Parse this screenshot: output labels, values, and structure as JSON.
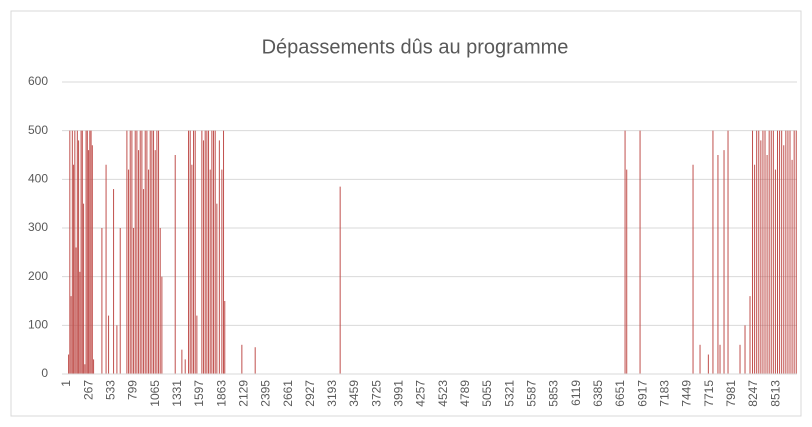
{
  "chart_data": {
    "type": "bar",
    "title": "Dépassements dûs au programme",
    "color": "#c0504d",
    "x": [
      20,
      35,
      50,
      65,
      80,
      95,
      110,
      125,
      140,
      155,
      170,
      185,
      200,
      215,
      230,
      245,
      260,
      275,
      290,
      305,
      320,
      420,
      470,
      500,
      560,
      600,
      640,
      720,
      740,
      760,
      780,
      800,
      820,
      840,
      860,
      880,
      900,
      920,
      940,
      960,
      980,
      1000,
      1020,
      1040,
      1060,
      1080,
      1100,
      1120,
      1140,
      1300,
      1380,
      1420,
      1460,
      1480,
      1500,
      1520,
      1540,
      1560,
      1620,
      1640,
      1660,
      1680,
      1700,
      1720,
      1740,
      1760,
      1780,
      1800,
      1830,
      1860,
      1880,
      1895,
      2100,
      2260,
      3280,
      6700,
      6720,
      6880,
      7516,
      7600,
      7700,
      7755,
      7815,
      7840,
      7888,
      7936,
      8080,
      8140,
      8200,
      8230,
      8255,
      8280,
      8305,
      8330,
      8355,
      8380,
      8405,
      8430,
      8455,
      8480,
      8505,
      8530,
      8555,
      8580,
      8605,
      8630,
      8655,
      8680,
      8705,
      8730,
      8755
    ],
    "values": [
      40,
      500,
      160,
      500,
      430,
      500,
      260,
      500,
      480,
      210,
      500,
      500,
      350,
      20,
      500,
      500,
      460,
      500,
      500,
      470,
      30,
      300,
      430,
      120,
      380,
      100,
      300,
      500,
      420,
      500,
      500,
      300,
      500,
      500,
      460,
      500,
      500,
      380,
      500,
      500,
      420,
      500,
      500,
      500,
      460,
      500,
      500,
      300,
      200,
      450,
      50,
      30,
      500,
      500,
      430,
      500,
      500,
      120,
      500,
      480,
      500,
      500,
      500,
      420,
      500,
      500,
      500,
      350,
      480,
      420,
      500,
      150,
      60,
      55,
      385,
      500,
      420,
      500,
      430,
      60,
      40,
      500,
      450,
      60,
      460,
      500,
      60,
      100,
      160,
      500,
      430,
      500,
      500,
      480,
      500,
      500,
      450,
      500,
      500,
      500,
      420,
      500,
      500,
      500,
      470,
      500,
      500,
      500,
      440,
      500,
      500
    ],
    "xlim": [
      -59,
      8764
    ],
    "xticks": [
      1,
      267,
      533,
      799,
      1065,
      1331,
      1597,
      1863,
      2129,
      2395,
      2661,
      2927,
      3193,
      3459,
      3725,
      3991,
      4257,
      4523,
      4789,
      5055,
      5321,
      5587,
      5853,
      6119,
      6385,
      6651,
      6917,
      7183,
      7449,
      7715,
      7981,
      8247,
      8513
    ],
    "ylim": [
      0,
      600
    ],
    "yticks": [
      0,
      100,
      200,
      300,
      400,
      500,
      600
    ],
    "grid": true
  }
}
